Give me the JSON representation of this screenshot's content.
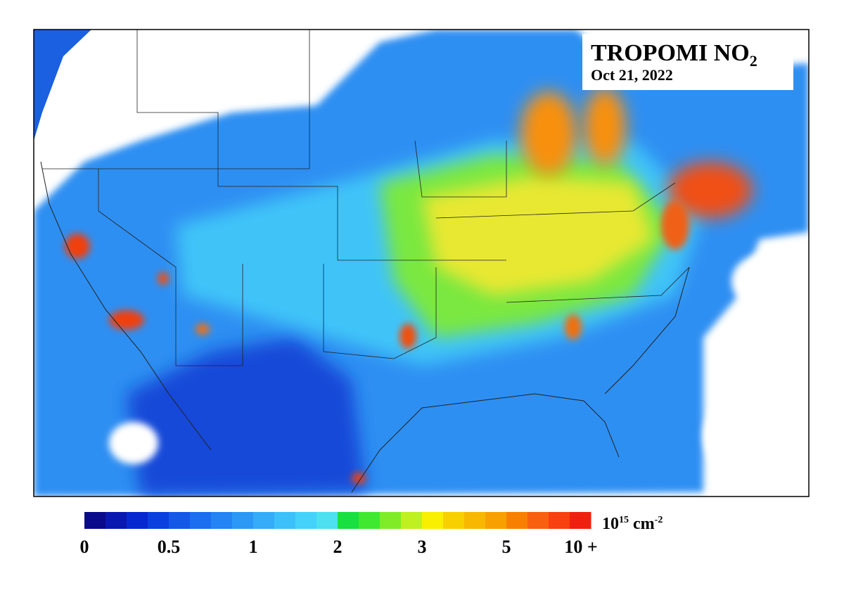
{
  "title": {
    "main": "TROPOMI NO",
    "subscript": "2"
  },
  "date": "Oct 21, 2022",
  "colorbar": {
    "labels": [
      "0",
      "0.5",
      "1",
      "2",
      "3",
      "5",
      "10 +"
    ],
    "colors": [
      "#0a0a8c",
      "#0818b0",
      "#0628d0",
      "#0a40e0",
      "#1458e8",
      "#1c6ef0",
      "#2484f4",
      "#2c98f6",
      "#34acf8",
      "#3cc0fa",
      "#44d2fa",
      "#4ce0f0",
      "#18e040",
      "#40e830",
      "#80ec28",
      "#c0f020",
      "#f8f000",
      "#f8d000",
      "#f8b800",
      "#f8a000",
      "#f88000",
      "#f86010",
      "#f84010",
      "#f02010"
    ],
    "unit": {
      "base": "10",
      "exponent": "15",
      "unit": "cm",
      "unit_exponent": "-2"
    }
  }
}
